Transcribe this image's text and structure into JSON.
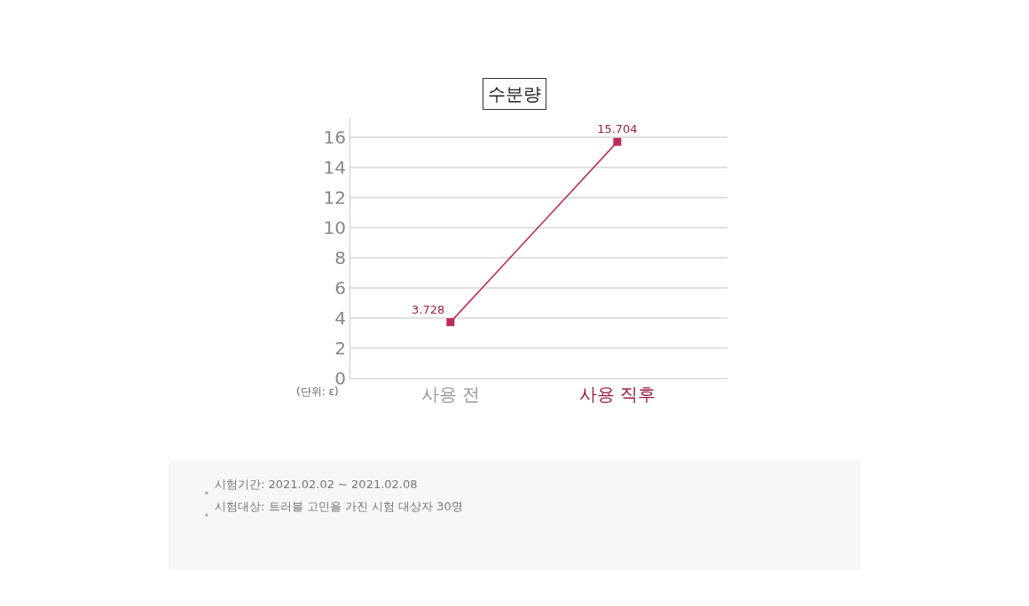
{
  "chart_data": {
    "type": "line",
    "title": "수분량",
    "ylabel": "(단위: ε)",
    "categories": [
      "사용 전",
      "사용 직후"
    ],
    "series": [
      {
        "color": "#be2a5a",
        "values": [
          3.728,
          15.704
        ]
      }
    ],
    "ylim": [
      0,
      17.3
    ],
    "yticks": [
      0,
      2,
      4,
      6,
      8,
      10,
      12,
      14,
      16
    ],
    "grid": "y",
    "marker": "square",
    "line_style": "solid",
    "data_labels": true,
    "legend": false,
    "annotations": [
      "시험기간: 2021.02.02 ~ 2021.02.08",
      "시험대상: 트러블 고민을 가진 시험 대상자 30명"
    ]
  }
}
